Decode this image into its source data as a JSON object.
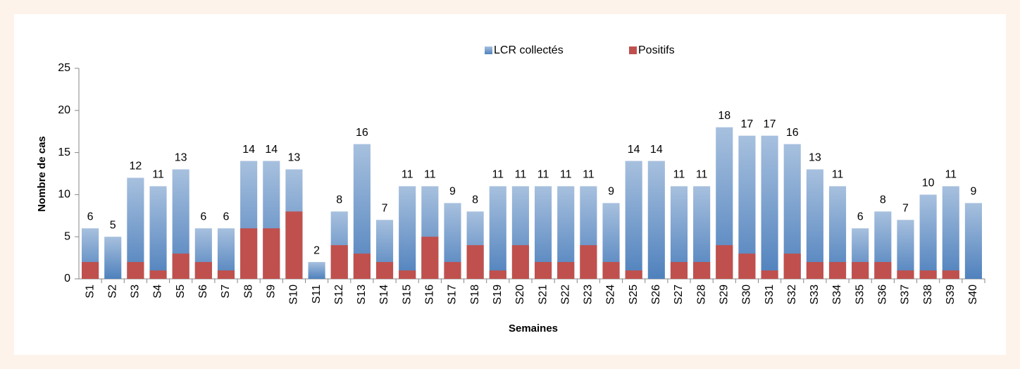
{
  "chart_data": {
    "type": "overlapped_bar",
    "x_label": "Semaines",
    "y_label": "Nombre de cas",
    "categories": [
      "S1",
      "S2",
      "S3",
      "S4",
      "S5",
      "S6",
      "S7",
      "S8",
      "S9",
      "S10",
      "S11",
      "S12",
      "S13",
      "S14",
      "S15",
      "S16",
      "S17",
      "S18",
      "S19",
      "S20",
      "S21",
      "S22",
      "S23",
      "S24",
      "S25",
      "S26",
      "S27",
      "S28",
      "S29",
      "S30",
      "S31",
      "S32",
      "S33",
      "S34",
      "S35",
      "S36",
      "S37",
      "S38",
      "S39",
      "S40"
    ],
    "series": [
      {
        "name": "LCR collectés",
        "color": "#4f81bd",
        "data_labels": true,
        "values": [
          6,
          5,
          12,
          11,
          13,
          6,
          6,
          14,
          14,
          13,
          2,
          8,
          16,
          7,
          11,
          11,
          9,
          8,
          11,
          11,
          11,
          11,
          11,
          9,
          14,
          14,
          11,
          11,
          18,
          17,
          17,
          16,
          13,
          11,
          6,
          8,
          7,
          10,
          11,
          9
        ]
      },
      {
        "name": "Positifs",
        "color": "#c0504d",
        "data_labels": false,
        "values": [
          2,
          0,
          2,
          1,
          3,
          2,
          1,
          6,
          6,
          8,
          0,
          4,
          3,
          2,
          1,
          5,
          2,
          4,
          1,
          4,
          2,
          2,
          4,
          2,
          1,
          0,
          2,
          2,
          4,
          3,
          1,
          3,
          2,
          2,
          2,
          2,
          1,
          1,
          1,
          0
        ]
      }
    ],
    "ylim": [
      0,
      25
    ],
    "yticks": [
      0,
      5,
      10,
      15,
      20,
      25
    ],
    "grid": false,
    "legend": "top"
  }
}
